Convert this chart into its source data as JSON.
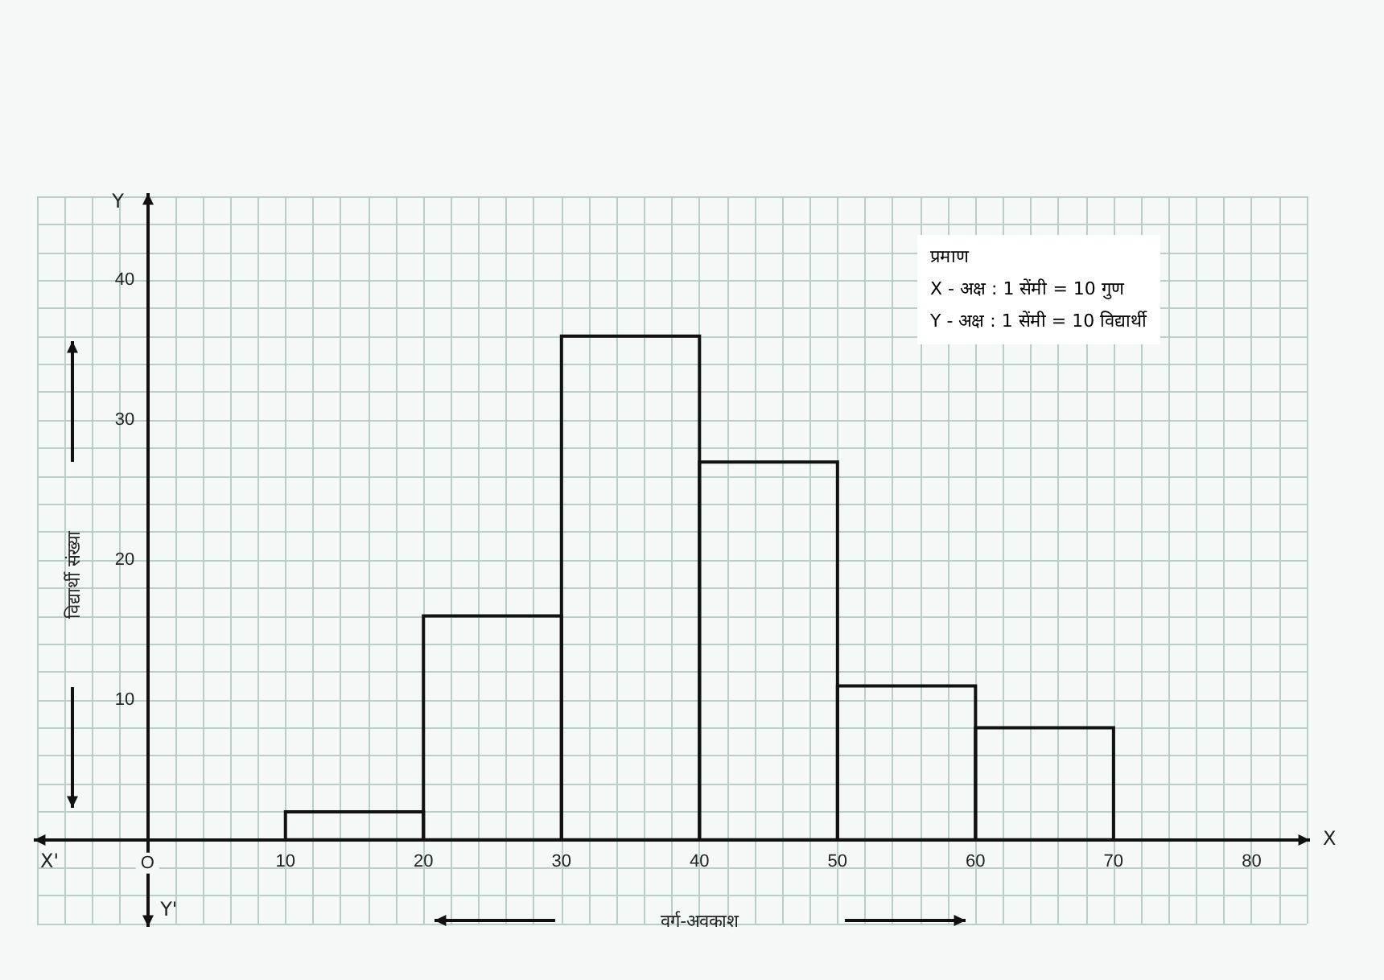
{
  "chart_data": {
    "type": "histogram",
    "xlabel": "वर्ग-अवकाश",
    "ylabel": "विद्यार्थी संख्या",
    "bins": [
      10,
      20,
      30,
      40,
      50,
      60,
      70
    ],
    "values": [
      2,
      16,
      36,
      27,
      11,
      8
    ],
    "color": "#111111",
    "xlim": [
      -8,
      84
    ],
    "xticks": [
      {
        "value": 0,
        "label": "O"
      },
      10,
      20,
      30,
      40,
      50,
      60,
      70,
      80
    ],
    "ylim": [
      -6,
      46
    ],
    "yticks": [
      10,
      20,
      30,
      40
    ],
    "grid": true,
    "annotations": [
      "प्रमाण",
      "X - अक्ष : 1 सेंमी = 10 गुण",
      "Y - अक्ष : 1 सेंमी = 10 विद्यार्थी",
      "X'",
      "X",
      "Y",
      "Y'"
    ]
  }
}
